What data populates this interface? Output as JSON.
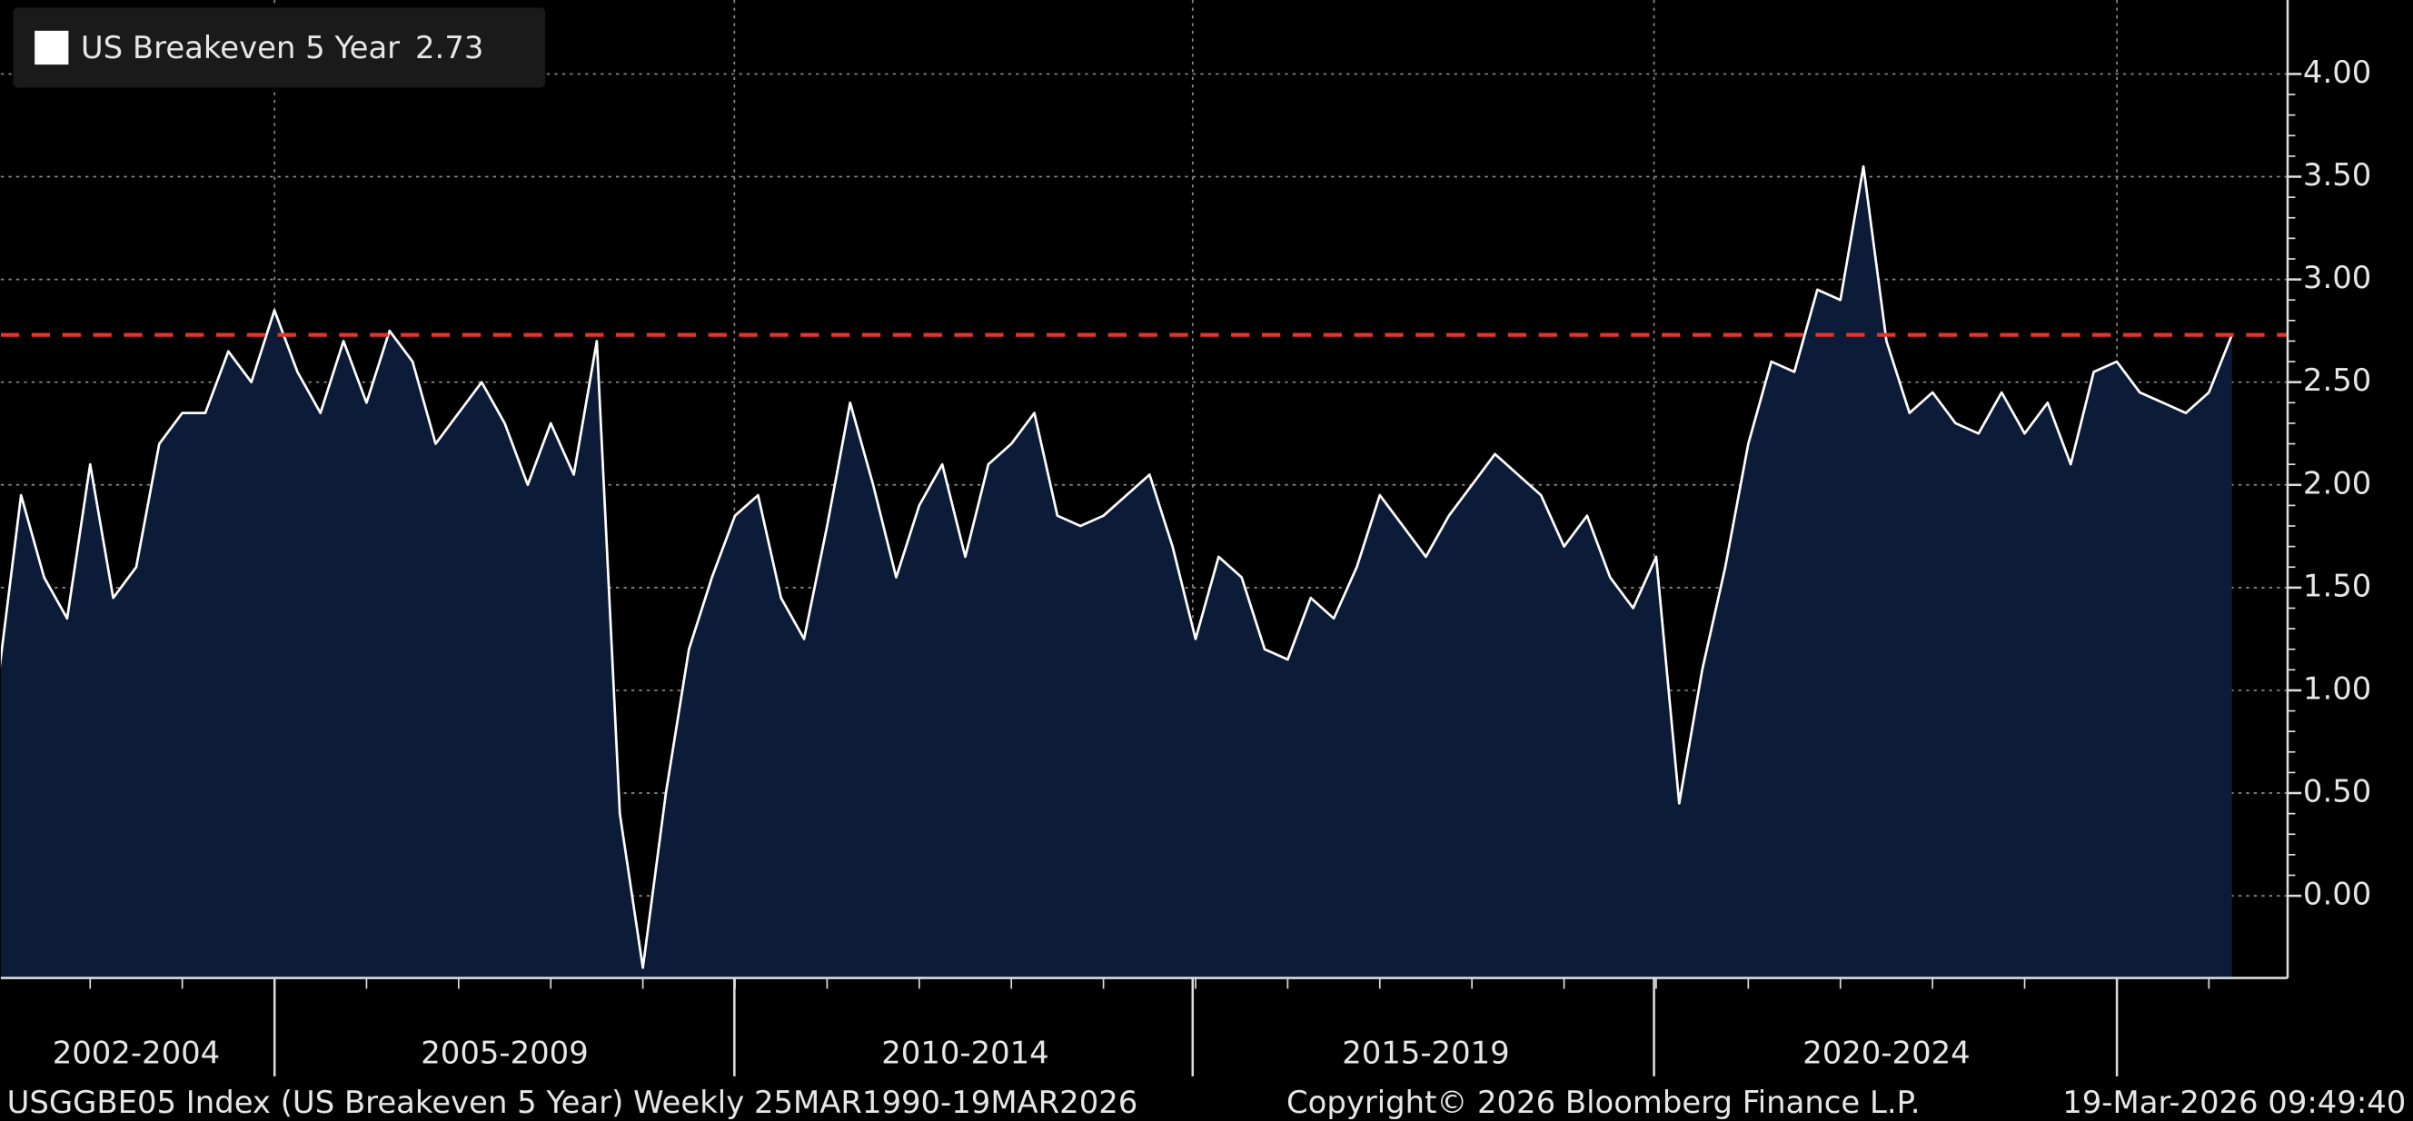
{
  "chart_data": {
    "type": "area",
    "series": [
      {
        "name": "US Breakeven 5 Year",
        "color": "#ffffff",
        "fill": "#0c1c38",
        "values": [
          1.05,
          1.95,
          1.55,
          1.35,
          2.1,
          1.45,
          1.6,
          2.2,
          2.35,
          2.35,
          2.65,
          2.5,
          2.85,
          2.55,
          2.35,
          2.7,
          2.4,
          2.75,
          2.6,
          2.2,
          2.35,
          2.5,
          2.3,
          2.0,
          2.3,
          2.05,
          2.7,
          0.4,
          -0.35,
          0.5,
          1.2,
          1.55,
          1.85,
          1.95,
          1.45,
          1.25,
          1.8,
          2.4,
          2.0,
          1.55,
          1.9,
          2.1,
          1.65,
          2.1,
          2.2,
          2.35,
          1.85,
          1.8,
          1.85,
          1.95,
          2.05,
          1.7,
          1.25,
          1.65,
          1.55,
          1.2,
          1.15,
          1.45,
          1.35,
          1.6,
          1.95,
          1.8,
          1.65,
          1.85,
          2.0,
          2.15,
          2.05,
          1.95,
          1.7,
          1.85,
          1.55,
          1.4,
          1.65,
          0.45,
          1.1,
          1.6,
          2.2,
          2.6,
          2.55,
          2.95,
          2.9,
          3.55,
          2.7,
          2.35,
          2.45,
          2.3,
          2.25,
          2.45,
          2.25,
          2.4,
          2.1,
          2.55,
          2.6,
          2.45,
          2.4,
          2.35,
          2.45,
          2.73
        ]
      }
    ],
    "categories": [
      null,
      null,
      null,
      null,
      null,
      null,
      "2002-2004",
      null,
      null,
      null,
      null,
      null,
      null,
      null,
      null,
      null,
      null,
      null,
      null,
      null,
      null,
      null,
      "2005-2009",
      null,
      null,
      null,
      null,
      null,
      null,
      null,
      null,
      null,
      null,
      null,
      null,
      null,
      null,
      null,
      null,
      null,
      null,
      null,
      "2010-2014",
      null,
      null,
      null,
      null,
      null,
      null,
      null,
      null,
      null,
      null,
      null,
      null,
      null,
      null,
      null,
      null,
      null,
      null,
      null,
      "2015-2019",
      null,
      null,
      null,
      null,
      null,
      null,
      null,
      null,
      null,
      null,
      null,
      null,
      null,
      null,
      null,
      null,
      null,
      null,
      null,
      "2020-2024",
      null,
      null,
      null,
      null,
      null,
      null,
      null,
      null,
      null,
      null,
      null,
      null,
      null,
      null,
      null
    ],
    "ylim": [
      -0.4,
      4.36
    ],
    "yticks": [
      {
        "value": 0,
        "label": "0.00"
      },
      {
        "value": 0.5,
        "label": "0.50"
      },
      {
        "value": 1,
        "label": "1.00"
      },
      {
        "value": 1.5,
        "label": "1.50"
      },
      {
        "value": 2,
        "label": "2.00"
      },
      {
        "value": 2.5,
        "label": "2.50"
      },
      {
        "value": 3,
        "label": "3.00"
      },
      {
        "value": 3.5,
        "label": "3.50"
      },
      {
        "value": 4,
        "label": "4.00"
      }
    ],
    "grid": true,
    "legend": {
      "position": "top-left"
    },
    "reference_line": {
      "value": 2.73,
      "color": "#e8322a",
      "style": "dashed"
    }
  },
  "footer": {
    "left": "USGGBE05 Index (US Breakeven 5 Year) Weekly 25MAR1990-19MAR2026",
    "center": "Copyright© 2026 Bloomberg Finance L.P.",
    "right": "19-Mar-2026 09:49:40"
  }
}
